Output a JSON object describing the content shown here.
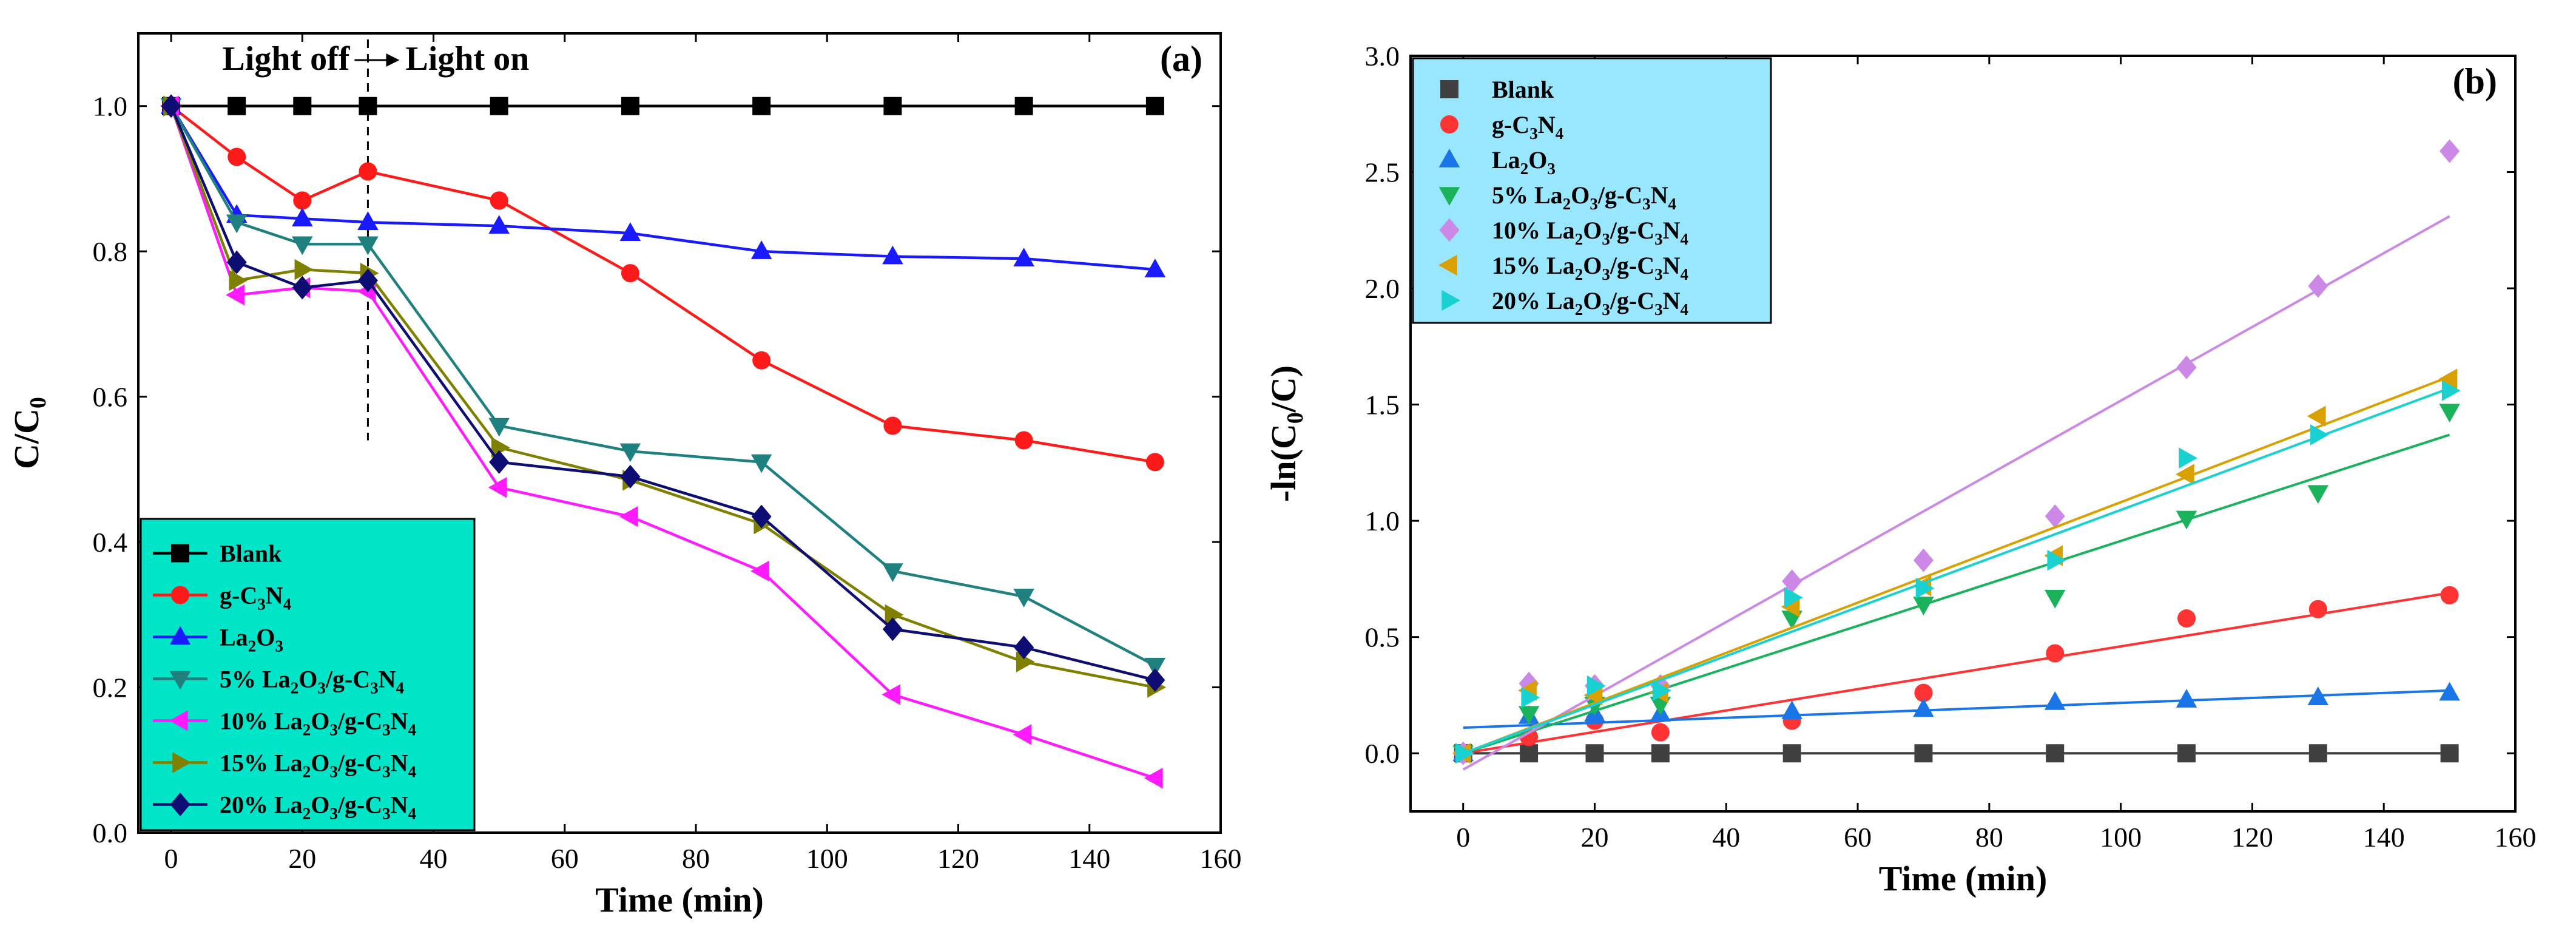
{
  "chart_data": [
    {
      "panel_label": "(a)",
      "type": "line",
      "xlabel": "Time (min)",
      "ylabel_main": "C/C",
      "ylabel_sub": "0",
      "xlim": [
        -5,
        160
      ],
      "ylim": [
        0,
        1.1
      ],
      "xticks": [
        0,
        20,
        40,
        60,
        80,
        100,
        120,
        140,
        160
      ],
      "yticks": [
        0.0,
        0.2,
        0.4,
        0.6,
        0.8,
        1.0
      ],
      "ytick_labels": [
        "0.0",
        "0.2",
        "0.4",
        "0.6",
        "0.8",
        "1.0"
      ],
      "annotation": {
        "left": "Light off",
        "right": "Light on",
        "divider_x": 30
      },
      "legend_position": "bottom-left",
      "legend_bg": "#00E5C8",
      "series": [
        {
          "name": "Blank",
          "parts": [
            {
              "t": "Blank"
            }
          ],
          "color": "#000000",
          "marker": "square",
          "x": [
            0,
            10,
            20,
            30,
            50,
            70,
            90,
            110,
            130,
            150
          ],
          "values": [
            1.0,
            1.0,
            1.0,
            1.0,
            1.0,
            1.0,
            1.0,
            1.0,
            1.0,
            1.0
          ]
        },
        {
          "name": "g-C3N4",
          "parts": [
            {
              "t": "g-C"
            },
            {
              "s": "3"
            },
            {
              "t": "N"
            },
            {
              "s": "4"
            }
          ],
          "color": "#FF1A1A",
          "marker": "circle",
          "x": [
            0,
            10,
            20,
            30,
            50,
            70,
            90,
            110,
            130,
            150
          ],
          "values": [
            1.0,
            0.93,
            0.87,
            0.91,
            0.87,
            0.77,
            0.65,
            0.56,
            0.54,
            0.51
          ]
        },
        {
          "name": "La2O3",
          "parts": [
            {
              "t": "La"
            },
            {
              "s": "2"
            },
            {
              "t": "O"
            },
            {
              "s": "3"
            }
          ],
          "color": "#1A1AFF",
          "marker": "triangle-up",
          "x": [
            0,
            10,
            20,
            30,
            50,
            70,
            90,
            110,
            130,
            150
          ],
          "values": [
            1.0,
            0.85,
            0.845,
            0.84,
            0.835,
            0.825,
            0.8,
            0.793,
            0.79,
            0.775
          ]
        },
        {
          "name": "5% La2O3/g-C3N4",
          "parts": [
            {
              "t": "5% La"
            },
            {
              "s": "2"
            },
            {
              "t": "O"
            },
            {
              "s": "3"
            },
            {
              "t": "/g-C"
            },
            {
              "s": "3"
            },
            {
              "t": "N"
            },
            {
              "s": "4"
            }
          ],
          "color": "#1F8080",
          "marker": "triangle-down",
          "x": [
            0,
            10,
            20,
            30,
            50,
            70,
            90,
            110,
            130,
            150
          ],
          "values": [
            1.0,
            0.84,
            0.81,
            0.81,
            0.56,
            0.525,
            0.51,
            0.36,
            0.325,
            0.23
          ]
        },
        {
          "name": "10% La2O3/g-C3N4",
          "parts": [
            {
              "t": "10% La"
            },
            {
              "s": "2"
            },
            {
              "t": "O"
            },
            {
              "s": "3"
            },
            {
              "t": "/g-C"
            },
            {
              "s": "3"
            },
            {
              "t": "N"
            },
            {
              "s": "4"
            }
          ],
          "color": "#FF1AFF",
          "marker": "triangle-left",
          "x": [
            0,
            10,
            20,
            30,
            50,
            70,
            90,
            110,
            130,
            150
          ],
          "values": [
            1.0,
            0.74,
            0.75,
            0.745,
            0.475,
            0.435,
            0.36,
            0.19,
            0.135,
            0.075
          ]
        },
        {
          "name": "15% La2O3/g-C3N4",
          "parts": [
            {
              "t": "15% La"
            },
            {
              "s": "2"
            },
            {
              "t": "O"
            },
            {
              "s": "3"
            },
            {
              "t": "/g-C"
            },
            {
              "s": "3"
            },
            {
              "t": "N"
            },
            {
              "s": "4"
            }
          ],
          "color": "#808000",
          "marker": "triangle-right",
          "x": [
            0,
            10,
            20,
            30,
            50,
            70,
            90,
            110,
            130,
            150
          ],
          "values": [
            1.0,
            0.76,
            0.775,
            0.77,
            0.53,
            0.485,
            0.425,
            0.3,
            0.235,
            0.2
          ]
        },
        {
          "name": "20% La2O3/g-C3N4",
          "parts": [
            {
              "t": "20% La"
            },
            {
              "s": "2"
            },
            {
              "t": "O"
            },
            {
              "s": "3"
            },
            {
              "t": "/g-C"
            },
            {
              "s": "3"
            },
            {
              "t": "N"
            },
            {
              "s": "4"
            }
          ],
          "color": "#0D0D73",
          "marker": "diamond",
          "x": [
            0,
            10,
            20,
            30,
            50,
            70,
            90,
            110,
            130,
            150
          ],
          "values": [
            1.0,
            0.785,
            0.75,
            0.76,
            0.51,
            0.49,
            0.435,
            0.28,
            0.255,
            0.21
          ]
        }
      ]
    },
    {
      "panel_label": "(b)",
      "type": "scatter",
      "xlabel": "Time (min)",
      "ylabel_main": "-ln(C",
      "ylabel_sub": "0",
      "ylabel_tail": "/C)",
      "xlim": [
        -8,
        160
      ],
      "ylim": [
        -0.25,
        3.0
      ],
      "xticks": [
        0,
        20,
        40,
        60,
        80,
        100,
        120,
        140,
        160
      ],
      "yticks": [
        0.0,
        0.5,
        1.0,
        1.5,
        2.0,
        2.5,
        3.0
      ],
      "ytick_labels": [
        "0.0",
        "0.5",
        "1.0",
        "1.5",
        "2.0",
        "2.5",
        "3.0"
      ],
      "legend_position": "top-left",
      "legend_bg": "#99E6FF",
      "series": [
        {
          "name": "Blank",
          "parts": [
            {
              "t": "Blank"
            }
          ],
          "color": "#404040",
          "marker": "square",
          "x": [
            0,
            10,
            20,
            30,
            50,
            70,
            90,
            110,
            130,
            150
          ],
          "values": [
            0,
            0,
            0,
            0,
            0,
            0,
            0,
            0,
            0,
            0
          ],
          "fit": [
            0,
            0
          ]
        },
        {
          "name": "g-C3N4",
          "parts": [
            {
              "t": "g-C"
            },
            {
              "s": "3"
            },
            {
              "t": "N"
            },
            {
              "s": "4"
            }
          ],
          "color": "#FF3333",
          "marker": "circle",
          "x": [
            0,
            10,
            20,
            30,
            50,
            70,
            90,
            110,
            130,
            150
          ],
          "values": [
            0,
            0.07,
            0.14,
            0.09,
            0.14,
            0.26,
            0.43,
            0.58,
            0.62,
            0.68
          ],
          "fit": [
            0.0,
            0.69
          ]
        },
        {
          "name": "La2O3",
          "parts": [
            {
              "t": "La"
            },
            {
              "s": "2"
            },
            {
              "t": "O"
            },
            {
              "s": "3"
            }
          ],
          "color": "#1A75E6",
          "marker": "triangle-up",
          "x": [
            0,
            10,
            20,
            30,
            50,
            70,
            90,
            110,
            130,
            150
          ],
          "values": [
            0,
            0.16,
            0.17,
            0.17,
            0.18,
            0.19,
            0.22,
            0.23,
            0.24,
            0.26
          ],
          "fit": [
            0.11,
            0.27
          ]
        },
        {
          "name": "5% La2O3/g-C3N4",
          "parts": [
            {
              "t": "5% La"
            },
            {
              "s": "2"
            },
            {
              "t": "O"
            },
            {
              "s": "3"
            },
            {
              "t": "/g-C"
            },
            {
              "s": "3"
            },
            {
              "t": "N"
            },
            {
              "s": "4"
            }
          ],
          "color": "#1AB35C",
          "marker": "triangle-down",
          "x": [
            0,
            10,
            20,
            30,
            50,
            70,
            90,
            110,
            130,
            150
          ],
          "values": [
            0,
            0.17,
            0.21,
            0.21,
            0.58,
            0.64,
            0.67,
            1.01,
            1.12,
            1.47
          ],
          "fit": [
            0.0,
            1.37
          ]
        },
        {
          "name": "10% La2O3/g-C3N4",
          "parts": [
            {
              "t": "10% La"
            },
            {
              "s": "2"
            },
            {
              "t": "O"
            },
            {
              "s": "3"
            },
            {
              "t": "/g-C"
            },
            {
              "s": "3"
            },
            {
              "t": "N"
            },
            {
              "s": "4"
            }
          ],
          "color": "#CC88E6",
          "marker": "diamond",
          "x": [
            0,
            10,
            20,
            30,
            50,
            70,
            90,
            110,
            130,
            150
          ],
          "values": [
            0,
            0.3,
            0.29,
            0.29,
            0.74,
            0.83,
            1.02,
            1.66,
            2.01,
            2.59
          ],
          "fit": [
            -0.07,
            2.31
          ]
        },
        {
          "name": "15% La2O3/g-C3N4",
          "parts": [
            {
              "t": "15% La"
            },
            {
              "s": "2"
            },
            {
              "t": "O"
            },
            {
              "s": "3"
            },
            {
              "t": "/g-C"
            },
            {
              "s": "3"
            },
            {
              "t": "N"
            },
            {
              "s": "4"
            }
          ],
          "color": "#D9A000",
          "marker": "triangle-left",
          "x": [
            0,
            10,
            20,
            30,
            50,
            70,
            90,
            110,
            130,
            150
          ],
          "values": [
            0,
            0.27,
            0.25,
            0.26,
            0.63,
            0.72,
            0.85,
            1.2,
            1.45,
            1.61
          ],
          "fit": [
            0.0,
            1.62
          ]
        },
        {
          "name": "20% La2O3/g-C3N4",
          "parts": [
            {
              "t": "20% La"
            },
            {
              "s": "2"
            },
            {
              "t": "O"
            },
            {
              "s": "3"
            },
            {
              "t": "/g-C"
            },
            {
              "s": "3"
            },
            {
              "t": "N"
            },
            {
              "s": "4"
            }
          ],
          "color": "#1AD1D1",
          "marker": "triangle-right",
          "x": [
            0,
            10,
            20,
            30,
            50,
            70,
            90,
            110,
            130,
            150
          ],
          "values": [
            0,
            0.24,
            0.29,
            0.27,
            0.67,
            0.71,
            0.83,
            1.27,
            1.37,
            1.56
          ],
          "fit": [
            0.0,
            1.57
          ]
        }
      ]
    }
  ]
}
